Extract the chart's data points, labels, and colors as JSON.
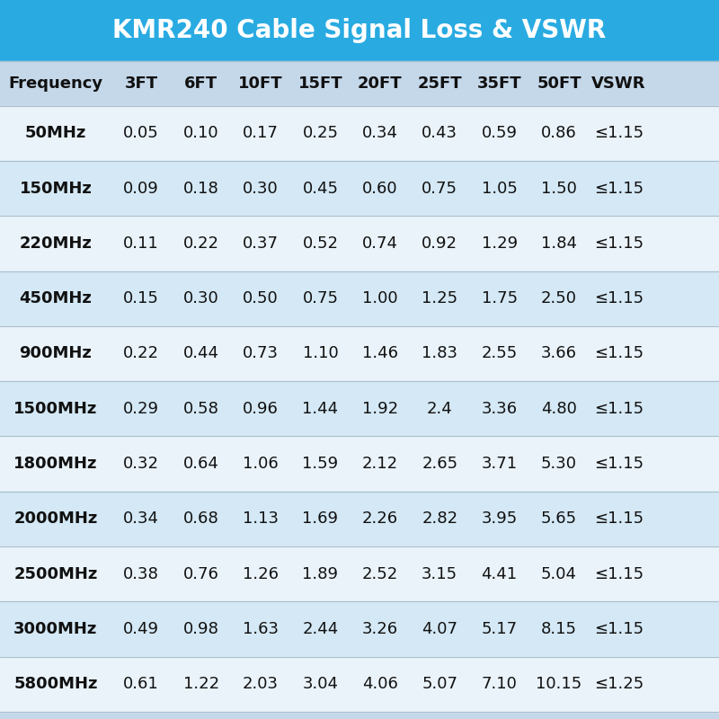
{
  "title": "KMR240 Cable Signal Loss & VSWR",
  "title_bg": "#29ABE2",
  "title_color": "#FFFFFF",
  "header_bg": "#C5D8EA",
  "row_bg_odd": "#EAF3FA",
  "row_bg_even": "#D4E8F5",
  "text_color": "#1a1a1a",
  "bold_color": "#111111",
  "columns": [
    "Frequency",
    "3FT",
    "6FT",
    "10FT",
    "15FT",
    "20FT",
    "25FT",
    "35FT",
    "50FT",
    "VSWR"
  ],
  "rows": [
    [
      "50MHz",
      "0.05",
      "0.10",
      "0.17",
      "0.25",
      "0.34",
      "0.43",
      "0.59",
      "0.86",
      "≤1.15"
    ],
    [
      "150MHz",
      "0.09",
      "0.18",
      "0.30",
      "0.45",
      "0.60",
      "0.75",
      "1.05",
      "1.50",
      "≤1.15"
    ],
    [
      "220MHz",
      "0.11",
      "0.22",
      "0.37",
      "0.52",
      "0.74",
      "0.92",
      "1.29",
      "1.84",
      "≤1.15"
    ],
    [
      "450MHz",
      "0.15",
      "0.30",
      "0.50",
      "0.75",
      "1.00",
      "1.25",
      "1.75",
      "2.50",
      "≤1.15"
    ],
    [
      "900MHz",
      "0.22",
      "0.44",
      "0.73",
      "1.10",
      "1.46",
      "1.83",
      "2.55",
      "3.66",
      "≤1.15"
    ],
    [
      "1500MHz",
      "0.29",
      "0.58",
      "0.96",
      "1.44",
      "1.92",
      "2.4",
      "3.36",
      "4.80",
      "≤1.15"
    ],
    [
      "1800MHz",
      "0.32",
      "0.64",
      "1.06",
      "1.59",
      "2.12",
      "2.65",
      "3.71",
      "5.30",
      "≤1.15"
    ],
    [
      "2000MHz",
      "0.34",
      "0.68",
      "1.13",
      "1.69",
      "2.26",
      "2.82",
      "3.95",
      "5.65",
      "≤1.15"
    ],
    [
      "2500MHz",
      "0.38",
      "0.76",
      "1.26",
      "1.89",
      "2.52",
      "3.15",
      "4.41",
      "5.04",
      "≤1.15"
    ],
    [
      "3000MHz",
      "0.49",
      "0.98",
      "1.63",
      "2.44",
      "3.26",
      "4.07",
      "5.17",
      "8.15",
      "≤1.15"
    ],
    [
      "5800MHz",
      "0.61",
      "1.22",
      "2.03",
      "3.04",
      "4.06",
      "5.07",
      "7.10",
      "10.15",
      "≤1.25"
    ]
  ],
  "fig_bg": "#C5D8EA",
  "title_fontsize": 20,
  "header_fontsize": 13,
  "cell_fontsize": 13
}
